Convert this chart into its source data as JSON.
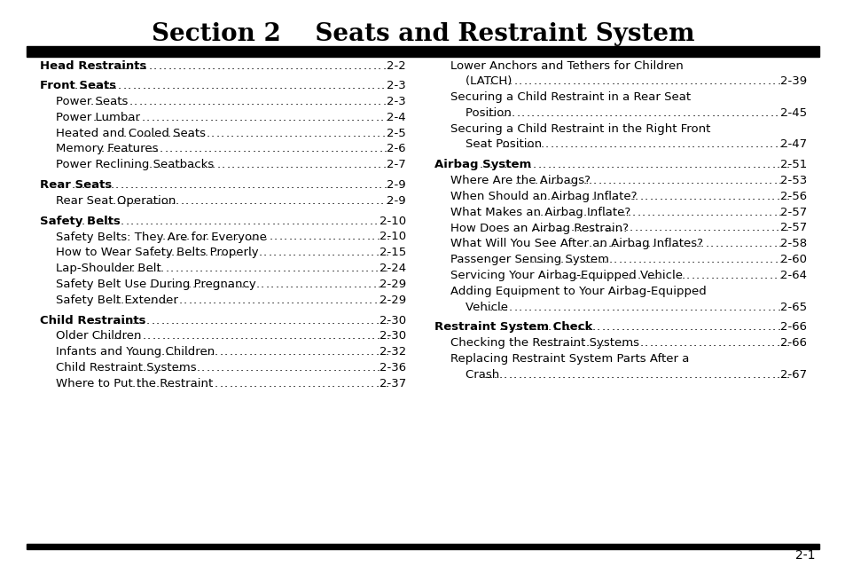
{
  "title": "Section 2    Seats and Restraint System",
  "bg_color": "#ffffff",
  "text_color": "#000000",
  "title_fontsize": 20,
  "body_fontsize": 9.5,
  "page_number": "2-1",
  "left_entries": [
    {
      "text": "Head Restraints",
      "bold": true,
      "indent": 0,
      "page": "2-2",
      "spacer_before": false
    },
    {
      "text": "Front Seats",
      "bold": true,
      "indent": 0,
      "page": "2-3",
      "spacer_before": true
    },
    {
      "text": "Power Seats",
      "bold": false,
      "indent": 1,
      "page": "2-3",
      "spacer_before": false
    },
    {
      "text": "Power Lumbar",
      "bold": false,
      "indent": 1,
      "page": "2-4",
      "spacer_before": false
    },
    {
      "text": "Heated and Cooled Seats",
      "bold": false,
      "indent": 1,
      "page": "2-5",
      "spacer_before": false
    },
    {
      "text": "Memory Features",
      "bold": false,
      "indent": 1,
      "page": "2-6",
      "spacer_before": false
    },
    {
      "text": "Power Reclining Seatbacks",
      "bold": false,
      "indent": 1,
      "page": "2-7",
      "spacer_before": false
    },
    {
      "text": "Rear Seats",
      "bold": true,
      "indent": 0,
      "page": "2-9",
      "spacer_before": true
    },
    {
      "text": "Rear Seat Operation",
      "bold": false,
      "indent": 1,
      "page": "2-9",
      "spacer_before": false
    },
    {
      "text": "Safety Belts",
      "bold": true,
      "indent": 0,
      "page": "2-10",
      "spacer_before": true
    },
    {
      "text": "Safety Belts: They Are for Everyone",
      "bold": false,
      "indent": 1,
      "page": "2-10",
      "spacer_before": false
    },
    {
      "text": "How to Wear Safety Belts Properly",
      "bold": false,
      "indent": 1,
      "page": "2-15",
      "spacer_before": false
    },
    {
      "text": "Lap-Shoulder Belt",
      "bold": false,
      "indent": 1,
      "page": "2-24",
      "spacer_before": false
    },
    {
      "text": "Safety Belt Use During Pregnancy",
      "bold": false,
      "indent": 1,
      "page": "2-29",
      "spacer_before": false
    },
    {
      "text": "Safety Belt Extender",
      "bold": false,
      "indent": 1,
      "page": "2-29",
      "spacer_before": false
    },
    {
      "text": "Child Restraints",
      "bold": true,
      "indent": 0,
      "page": "2-30",
      "spacer_before": true
    },
    {
      "text": "Older Children",
      "bold": false,
      "indent": 1,
      "page": "2-30",
      "spacer_before": false
    },
    {
      "text": "Infants and Young Children",
      "bold": false,
      "indent": 1,
      "page": "2-32",
      "spacer_before": false
    },
    {
      "text": "Child Restraint Systems",
      "bold": false,
      "indent": 1,
      "page": "2-36",
      "spacer_before": false
    },
    {
      "text": "Where to Put the Restraint",
      "bold": false,
      "indent": 1,
      "page": "2-37",
      "spacer_before": false
    }
  ],
  "right_entries": [
    {
      "text": "Lower Anchors and Tethers for Children",
      "bold": false,
      "indent": 1,
      "page": "",
      "spacer_before": false
    },
    {
      "text": "    (LATCH)",
      "bold": false,
      "indent": 1,
      "page": "2-39",
      "spacer_before": false
    },
    {
      "text": "Securing a Child Restraint in a Rear Seat",
      "bold": false,
      "indent": 1,
      "page": "",
      "spacer_before": false
    },
    {
      "text": "    Position",
      "bold": false,
      "indent": 1,
      "page": "2-45",
      "spacer_before": false
    },
    {
      "text": "Securing a Child Restraint in the Right Front",
      "bold": false,
      "indent": 1,
      "page": "",
      "spacer_before": false
    },
    {
      "text": "    Seat Position",
      "bold": false,
      "indent": 1,
      "page": "2-47",
      "spacer_before": false
    },
    {
      "text": "Airbag System",
      "bold": true,
      "indent": 0,
      "page": "2-51",
      "spacer_before": true
    },
    {
      "text": "Where Are the Airbags?",
      "bold": false,
      "indent": 1,
      "page": "2-53",
      "spacer_before": false
    },
    {
      "text": "When Should an Airbag Inflate?",
      "bold": false,
      "indent": 1,
      "page": "2-56",
      "spacer_before": false
    },
    {
      "text": "What Makes an Airbag Inflate?",
      "bold": false,
      "indent": 1,
      "page": "2-57",
      "spacer_before": false
    },
    {
      "text": "How Does an Airbag Restrain?",
      "bold": false,
      "indent": 1,
      "page": "2-57",
      "spacer_before": false
    },
    {
      "text": "What Will You See After an Airbag Inflates?",
      "bold": false,
      "indent": 1,
      "page": "2-58",
      "spacer_before": false
    },
    {
      "text": "Passenger Sensing System",
      "bold": false,
      "indent": 1,
      "page": "2-60",
      "spacer_before": false
    },
    {
      "text": "Servicing Your Airbag-Equipped Vehicle",
      "bold": false,
      "indent": 1,
      "page": "2-64",
      "spacer_before": false
    },
    {
      "text": "Adding Equipment to Your Airbag-Equipped",
      "bold": false,
      "indent": 1,
      "page": "",
      "spacer_before": false
    },
    {
      "text": "    Vehicle",
      "bold": false,
      "indent": 1,
      "page": "2-65",
      "spacer_before": false
    },
    {
      "text": "Restraint System Check",
      "bold": true,
      "indent": 0,
      "page": "2-66",
      "spacer_before": true
    },
    {
      "text": "Checking the Restraint Systems",
      "bold": false,
      "indent": 1,
      "page": "2-66",
      "spacer_before": false
    },
    {
      "text": "Replacing Restraint System Parts After a",
      "bold": false,
      "indent": 1,
      "page": "",
      "spacer_before": false
    },
    {
      "text": "    Crash",
      "bold": false,
      "indent": 1,
      "page": "2-67",
      "spacer_before": false
    }
  ]
}
